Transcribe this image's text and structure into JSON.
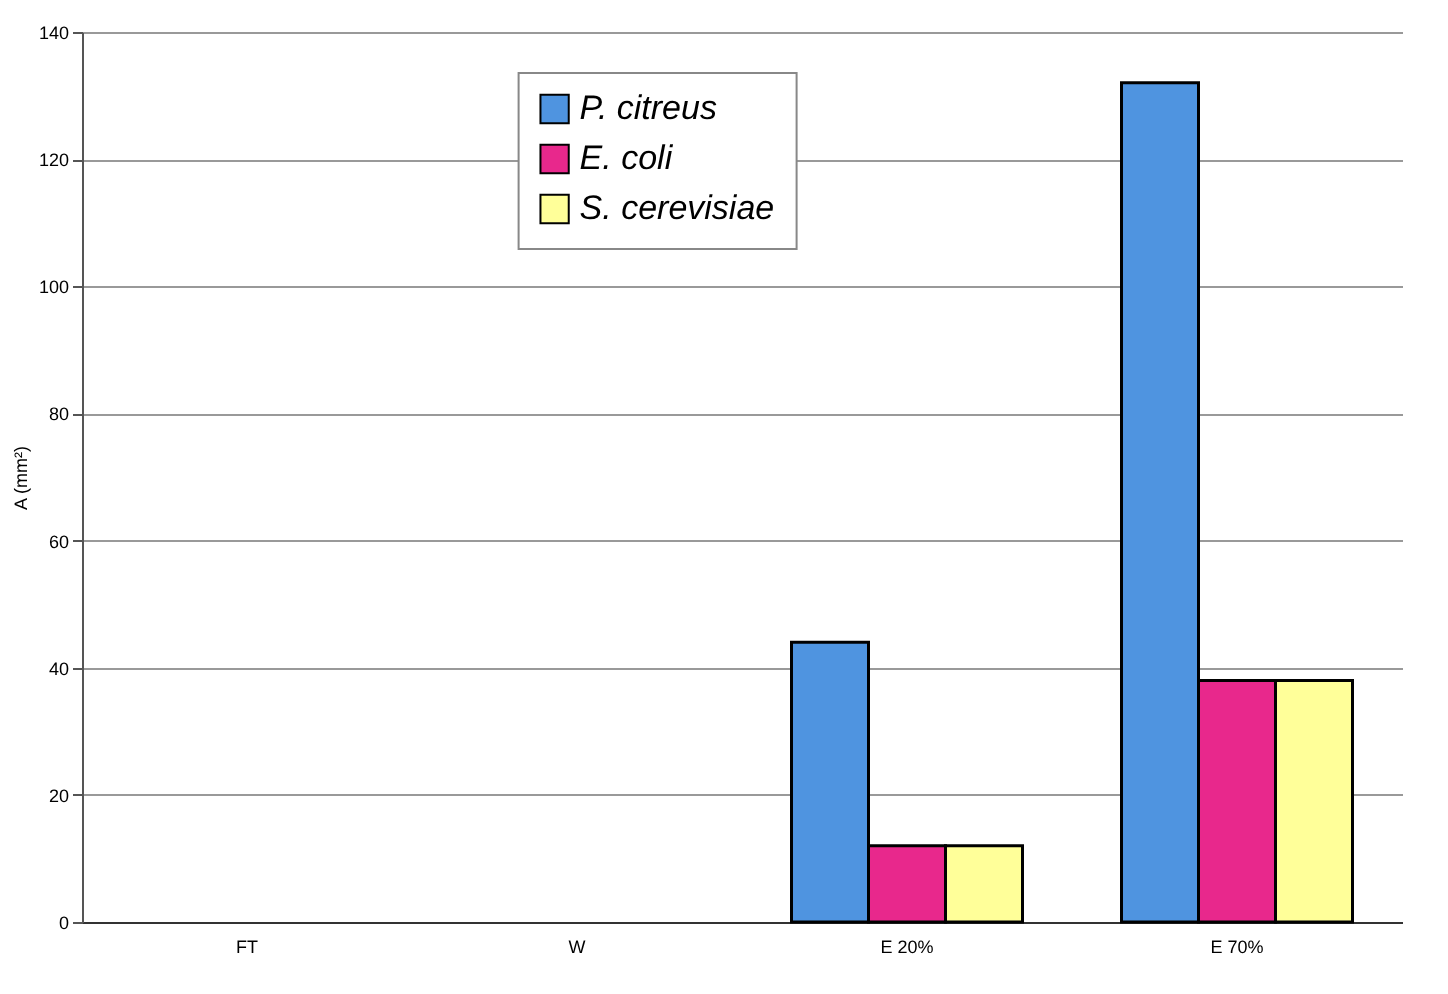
{
  "chart_data": {
    "type": "bar",
    "ylabel": "A (mm²)",
    "categories": [
      "FT",
      "W",
      "E 20%",
      "E 70%"
    ],
    "series": [
      {
        "name": "P. citreus",
        "color": "#4f94e0",
        "values": [
          null,
          null,
          44,
          132
        ]
      },
      {
        "name": "E. coli",
        "color": "#e8288c",
        "values": [
          null,
          null,
          12,
          38
        ]
      },
      {
        "name": "S. cerevisiae",
        "color": "#ffff99",
        "values": [
          null,
          null,
          12,
          38
        ]
      }
    ],
    "ylim": [
      0,
      140
    ],
    "yticks": [
      0,
      20,
      40,
      60,
      80,
      100,
      120,
      140
    ],
    "grid": "y",
    "legend": "top"
  }
}
